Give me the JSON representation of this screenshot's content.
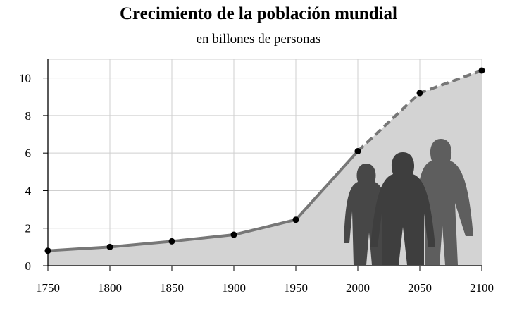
{
  "chart_data": {
    "type": "area",
    "title": "Crecimiento de la población mundial",
    "subtitle": "en billones de personas",
    "xlabel": "",
    "ylabel": "",
    "x": [
      1750,
      1800,
      1850,
      1900,
      1950,
      2000,
      2050,
      2100
    ],
    "y": [
      0.8,
      1.0,
      1.3,
      1.65,
      2.45,
      6.1,
      9.2,
      10.4
    ],
    "projected_from": 2000,
    "xlim": [
      1750,
      2100
    ],
    "ylim": [
      0,
      11
    ],
    "xticks": [
      "1750",
      "1800",
      "1850",
      "1900",
      "1950",
      "2000",
      "2050",
      "2100"
    ],
    "yticks": [
      "0",
      "2",
      "4",
      "6",
      "8",
      "10"
    ],
    "grid": true,
    "illustration": "three-human-silhouettes",
    "colors": {
      "area": "#d3d3d3",
      "line": "#777777",
      "marker": "#000000",
      "grid": "#cfcfcf",
      "silhouette_back": "#474747",
      "silhouette_mid": "#3e3e3e",
      "silhouette_front": "#5e5e5e"
    }
  }
}
